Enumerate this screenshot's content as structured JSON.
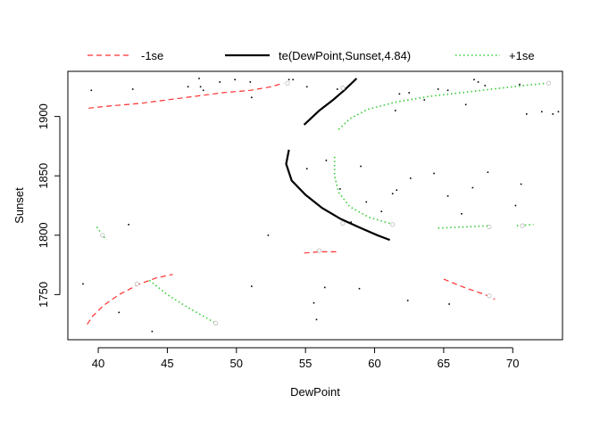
{
  "chart_data": {
    "type": "line",
    "title": "",
    "xlabel": "DewPoint",
    "ylabel": "Sunset",
    "xlim": [
      37.8,
      73.6
    ],
    "ylim": [
      1712,
      1938
    ],
    "x_ticks": [
      "40",
      "45",
      "50",
      "55",
      "60",
      "65",
      "70"
    ],
    "y_ticks": [
      "1750",
      "1800",
      "1850",
      "1900"
    ],
    "grid": false,
    "legend_placement": "top",
    "legend": [
      {
        "label": "-1se",
        "color": "#ff3030",
        "dash": "dashed"
      },
      {
        "label": "te(DewPoint,Sunset,4.84)",
        "color": "#000000",
        "dash": "solid"
      },
      {
        "label": "+1se",
        "color": "#33cc33",
        "dash": "dotted"
      }
    ],
    "series": [
      {
        "name": "te(DewPoint,Sunset,4.84)",
        "color": "#000000",
        "dash": "solid",
        "width": 2.2,
        "lines": [
          {
            "level": "0",
            "label_at": [
              57.7,
              1924
            ],
            "label_end": [
              57.7,
              1810
            ],
            "points": [
              [
                54.9,
                1893
              ],
              [
                56.0,
                1905
              ],
              [
                57.0,
                1914
              ],
              [
                57.8,
                1922
              ],
              [
                58.7,
                1932
              ]
            ]
          },
          {
            "level": "0",
            "label_at": [
              57.7,
              1810
            ],
            "points": [
              [
                53.8,
                1872
              ],
              [
                53.6,
                1860
              ],
              [
                54.0,
                1846
              ],
              [
                55.0,
                1834
              ],
              [
                56.2,
                1823
              ],
              [
                57.5,
                1814
              ],
              [
                59.0,
                1806
              ],
              [
                60.2,
                1800
              ],
              [
                61.1,
                1796
              ]
            ]
          }
        ]
      },
      {
        "name": "-1se",
        "color": "#ff3030",
        "dash": "dashed",
        "width": 1.2,
        "lines": [
          {
            "label_at": [
              53.7,
              1928
            ],
            "points": [
              [
                39.3,
                1907
              ],
              [
                41.0,
                1909
              ],
              [
                43.0,
                1911
              ],
              [
                45.0,
                1914
              ],
              [
                47.0,
                1917
              ],
              [
                49.0,
                1920
              ],
              [
                51.0,
                1922
              ],
              [
                52.5,
                1925
              ],
              [
                53.4,
                1928
              ]
            ]
          },
          {
            "label_at": [
              56.0,
              1787
            ],
            "points": [
              [
                54.9,
                1785
              ],
              [
                56.0,
                1786
              ],
              [
                57.4,
                1786
              ]
            ]
          },
          {
            "label_at": [
              42.8,
              1759
            ],
            "points": [
              [
                39.2,
                1725
              ],
              [
                39.6,
                1732
              ],
              [
                40.4,
                1741
              ],
              [
                41.5,
                1750
              ],
              [
                43.0,
                1759
              ],
              [
                44.2,
                1764
              ],
              [
                45.4,
                1767
              ]
            ]
          },
          {
            "label_at": [
              68.3,
              1749
            ],
            "points": [
              [
                65.0,
                1763
              ],
              [
                66.5,
                1756
              ],
              [
                68.0,
                1750
              ],
              [
                68.7,
                1746
              ]
            ]
          }
        ]
      },
      {
        "name": "+1se",
        "color": "#33cc33",
        "dash": "dotted",
        "width": 1.6,
        "lines": [
          {
            "label_at": [
              72.6,
              1928
            ],
            "points": [
              [
                57.4,
                1889
              ],
              [
                58.2,
                1898
              ],
              [
                59.5,
                1906
              ],
              [
                61.5,
                1912
              ],
              [
                64.0,
                1917
              ],
              [
                67.0,
                1921
              ],
              [
                70.0,
                1925
              ],
              [
                72.4,
                1928
              ]
            ]
          },
          {
            "label_at": [
              61.3,
              1809
            ],
            "points": [
              [
                57.1,
                1866
              ],
              [
                57.1,
                1850
              ],
              [
                57.4,
                1836
              ],
              [
                58.2,
                1824
              ],
              [
                59.6,
                1815
              ],
              [
                61.1,
                1810
              ]
            ]
          },
          {
            "label_at": [
              68.3,
              1807
            ],
            "points": [
              [
                64.6,
                1806
              ],
              [
                66.5,
                1807
              ],
              [
                68.4,
                1808
              ]
            ]
          },
          {
            "label_at": [
              70.7,
              1808
            ],
            "points": [
              [
                70.3,
                1808
              ],
              [
                71.5,
                1809
              ]
            ]
          },
          {
            "label_at": [
              40.3,
              1800
            ],
            "points": [
              [
                39.9,
                1807
              ],
              [
                40.3,
                1800
              ],
              [
                40.6,
                1796
              ]
            ]
          },
          {
            "label_at": [
              48.5,
              1726
            ],
            "points": [
              [
                43.7,
                1762
              ],
              [
                45.0,
                1750
              ],
              [
                46.5,
                1739
              ],
              [
                48.5,
                1726
              ]
            ]
          }
        ]
      }
    ],
    "data_points": [
      [
        39.5,
        1922
      ],
      [
        42.5,
        1923
      ],
      [
        46.5,
        1925
      ],
      [
        47.4,
        1925
      ],
      [
        48.8,
        1929
      ],
      [
        49.9,
        1931
      ],
      [
        51.0,
        1929
      ],
      [
        51.1,
        1916
      ],
      [
        53.8,
        1931
      ],
      [
        54.1,
        1931
      ],
      [
        55.1,
        1925
      ],
      [
        57.3,
        1923
      ],
      [
        61.5,
        1905
      ],
      [
        61.8,
        1919
      ],
      [
        62.5,
        1920
      ],
      [
        63.6,
        1914
      ],
      [
        64.6,
        1923
      ],
      [
        65.3,
        1922
      ],
      [
        66.6,
        1910
      ],
      [
        67.2,
        1931
      ],
      [
        67.5,
        1929
      ],
      [
        68.0,
        1926
      ],
      [
        70.5,
        1927
      ],
      [
        71.0,
        1902
      ],
      [
        72.1,
        1904
      ],
      [
        72.9,
        1902
      ],
      [
        73.3,
        1904
      ],
      [
        47.3,
        1932
      ],
      [
        47.6,
        1922
      ],
      [
        52.3,
        1800
      ],
      [
        55.1,
        1856
      ],
      [
        56.5,
        1863
      ],
      [
        57.5,
        1839
      ],
      [
        58.3,
        1811
      ],
      [
        59.0,
        1858
      ],
      [
        59.4,
        1828
      ],
      [
        60.5,
        1820
      ],
      [
        61.3,
        1835
      ],
      [
        61.6,
        1838
      ],
      [
        62.6,
        1848
      ],
      [
        64.3,
        1852
      ],
      [
        65.3,
        1833
      ],
      [
        66.3,
        1818
      ],
      [
        67.1,
        1840
      ],
      [
        68.2,
        1853
      ],
      [
        70.2,
        1825
      ],
      [
        70.6,
        1843
      ],
      [
        38.9,
        1759
      ],
      [
        41.5,
        1735
      ],
      [
        42.2,
        1809
      ],
      [
        43.9,
        1719
      ],
      [
        51.1,
        1757
      ],
      [
        55.6,
        1743
      ],
      [
        55.8,
        1729
      ],
      [
        56.4,
        1756
      ],
      [
        58.9,
        1755
      ],
      [
        62.4,
        1745
      ],
      [
        65.4,
        1742
      ]
    ]
  }
}
